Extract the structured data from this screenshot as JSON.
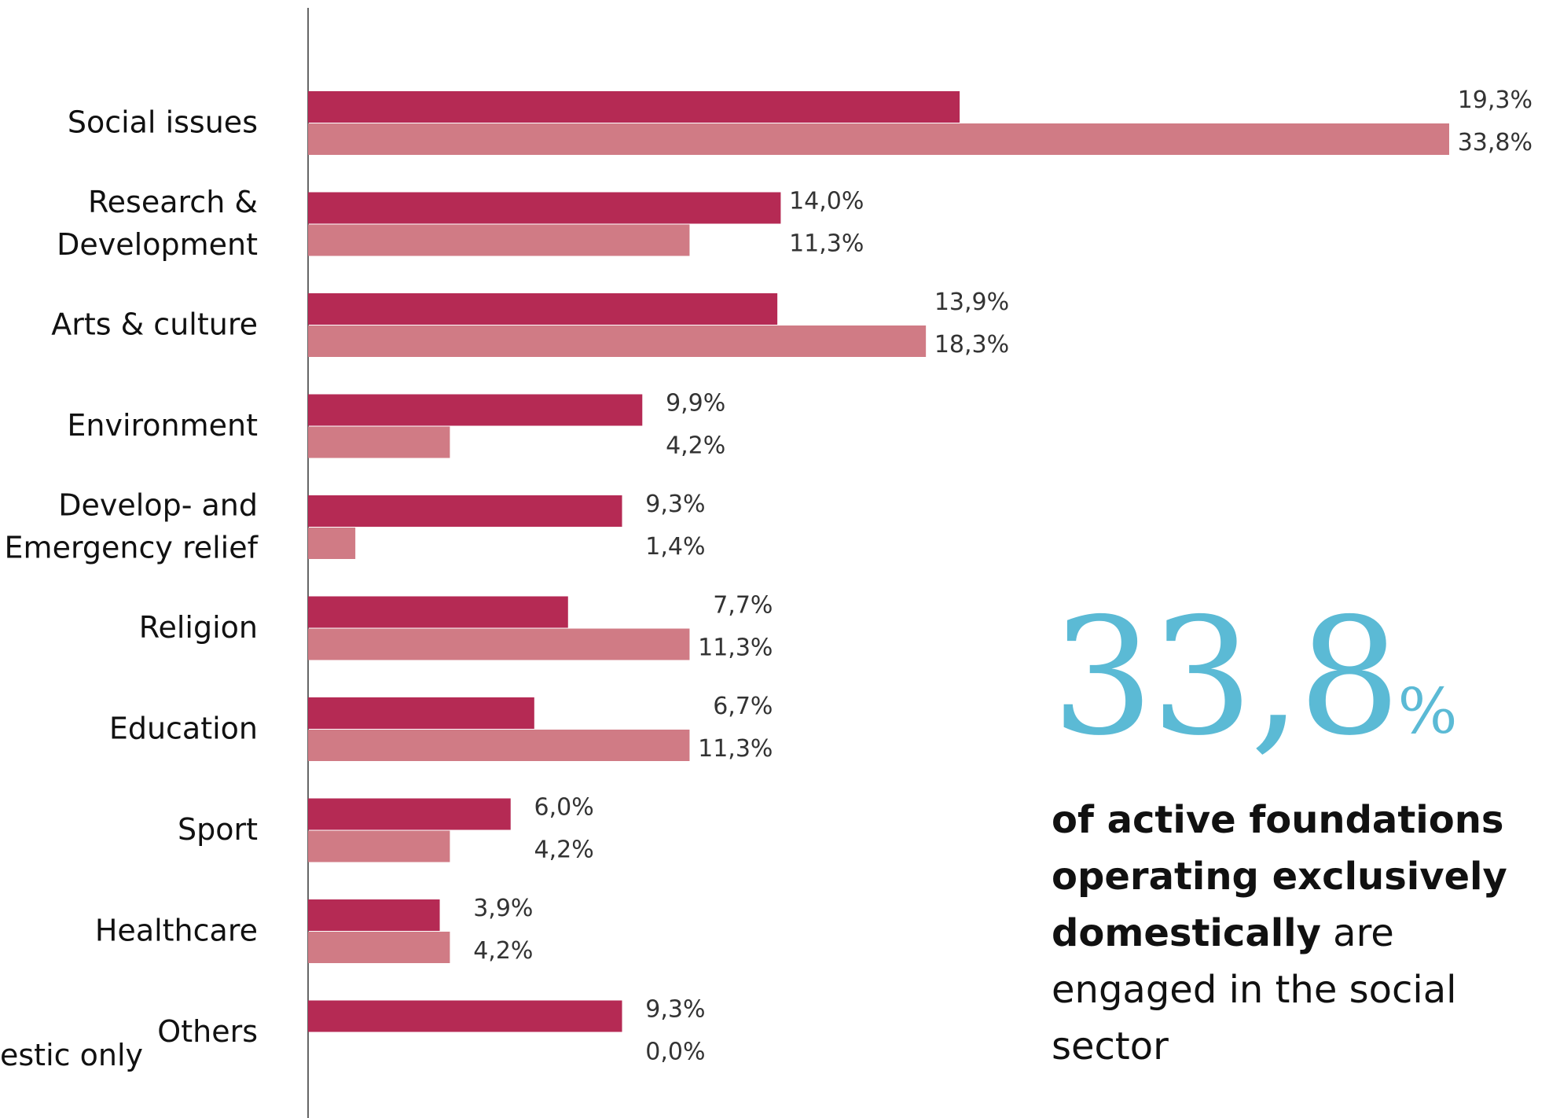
{
  "chart_data": {
    "type": "bar",
    "orientation": "horizontal",
    "categories": [
      "Social issues",
      "Research & Development",
      "Arts & culture",
      "Environment",
      "Develop- and Emergency relief",
      "Religion",
      "Education",
      "Sport",
      "Healthcare",
      "Others"
    ],
    "category_lines": [
      [
        "Social issues"
      ],
      [
        "Research &",
        "Development"
      ],
      [
        "Arts & culture"
      ],
      [
        "Environment"
      ],
      [
        "Develop- and",
        "Emergency relief"
      ],
      [
        "Religion"
      ],
      [
        "Education"
      ],
      [
        "Sport"
      ],
      [
        "Healthcare"
      ],
      [
        "Others"
      ]
    ],
    "series": [
      {
        "values": [
          19.3,
          14.0,
          13.9,
          9.9,
          9.3,
          7.7,
          6.7,
          6.0,
          3.9,
          9.3
        ],
        "labels": [
          "19,3%",
          "14,0%",
          "13,9%",
          "9,9%",
          "9,3%",
          "7,7%",
          "6,7%",
          "6,0%",
          "3,9%",
          "9,3%"
        ],
        "color": "#b52a54"
      },
      {
        "name": "Domestic only",
        "values": [
          33.8,
          11.3,
          18.3,
          4.2,
          1.4,
          11.3,
          11.3,
          4.2,
          4.2,
          0.0
        ],
        "labels": [
          "33,8%",
          "11,3%",
          "18,3%",
          "4,2%",
          "1,4%",
          "11,3%",
          "11,3%",
          "4,2%",
          "4,2%",
          "0,0%"
        ],
        "color": "#d07b85"
      }
    ],
    "xlim": [
      0,
      33.8
    ],
    "legend_visible_text": "estic only",
    "grid": false
  },
  "callout": {
    "number": "33,8",
    "percent_sign": "%",
    "text_bold": "of active foundations operating exclusively domestically",
    "text_regular": " are engaged in the social sector",
    "color": "#5bbad5"
  }
}
